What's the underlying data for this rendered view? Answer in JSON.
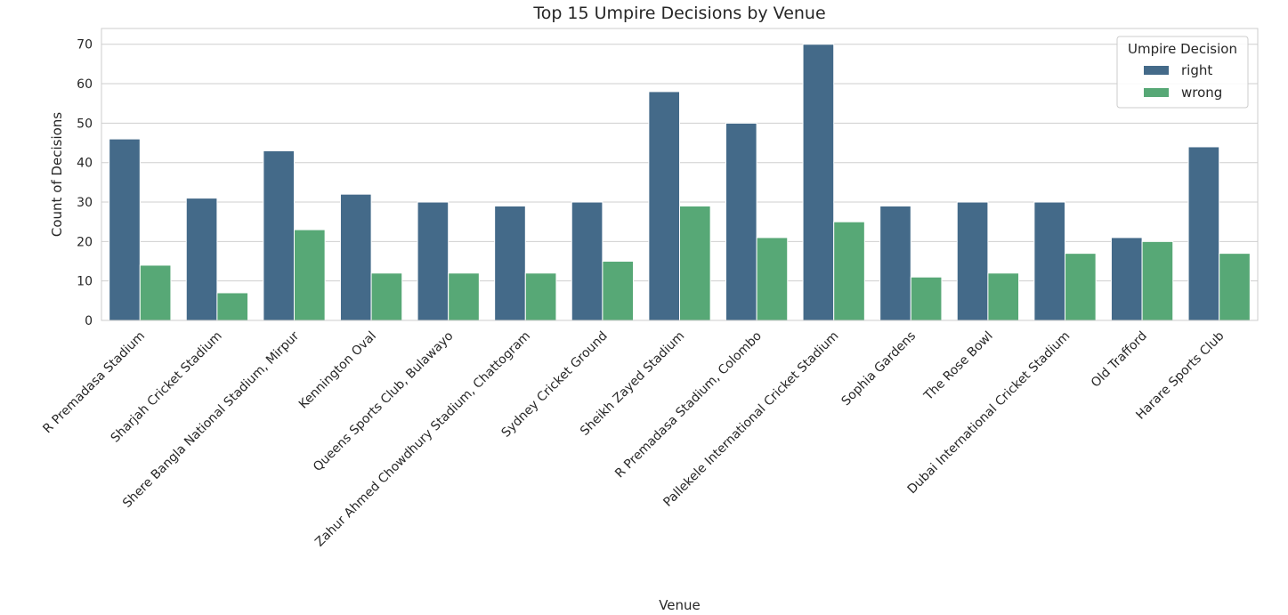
{
  "chart_data": {
    "type": "bar",
    "title": "Top 15 Umpire Decisions by Venue",
    "xlabel": "Venue",
    "ylabel": "Count of Decisions",
    "ylim": [
      0,
      74
    ],
    "yticks": [
      0,
      10,
      20,
      30,
      40,
      50,
      60,
      70
    ],
    "grid": true,
    "legend": {
      "title": "Umpire Decision",
      "placement": "top-right"
    },
    "categories": [
      "R Premadasa Stadium",
      "Sharjah Cricket Stadium",
      "Shere Bangla National Stadium, Mirpur",
      "Kennington Oval",
      "Queens Sports Club, Bulawayo",
      "Zahur Ahmed Chowdhury Stadium, Chattogram",
      "Sydney Cricket Ground",
      "Sheikh Zayed Stadium",
      "R Premadasa Stadium, Colombo",
      "Pallekele International Cricket Stadium",
      "Sophia Gardens",
      "The Rose Bowl",
      "Dubai International Cricket Stadium",
      "Old Trafford",
      "Harare Sports Club"
    ],
    "series": [
      {
        "name": "right",
        "color": "#446a89",
        "values": [
          46,
          31,
          43,
          32,
          30,
          29,
          30,
          58,
          50,
          70,
          29,
          30,
          30,
          21,
          44
        ]
      },
      {
        "name": "wrong",
        "color": "#57a876",
        "values": [
          14,
          7,
          23,
          12,
          12,
          12,
          15,
          29,
          21,
          25,
          11,
          12,
          17,
          20,
          17
        ]
      }
    ]
  }
}
